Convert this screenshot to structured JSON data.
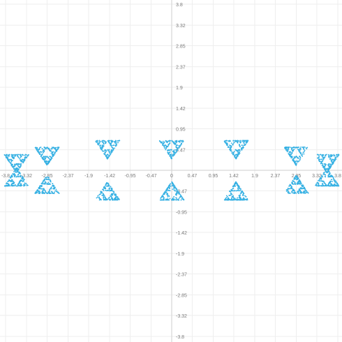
{
  "chart_data": {
    "type": "scatter",
    "title": "",
    "xlabel": "",
    "ylabel": "",
    "xlim": [
      -3.8,
      3.8
    ],
    "ylim": [
      -3.8,
      3.8
    ],
    "grid": true,
    "point_color": "#35b0e3",
    "x_ticks": [
      -3.8,
      -3.32,
      -2.85,
      -2.37,
      -1.9,
      -1.42,
      -0.95,
      -0.47,
      0,
      0.47,
      0.95,
      1.42,
      1.9,
      2.37,
      2.85,
      3.32,
      3.8
    ],
    "x_tick_labels": [
      "-3.8",
      "-3.32",
      "-2.85",
      "-2.37",
      "-1.9",
      "-1.42",
      "-0.95",
      "-0.47",
      "0",
      "0.47",
      "0.95",
      "1.42",
      "1.9",
      "2.37",
      "2.85",
      "3.32",
      "3.8"
    ],
    "y_ticks": [
      3.8,
      3.32,
      2.85,
      2.37,
      1.9,
      1.42,
      0.95,
      0.47,
      -0.47,
      -0.95,
      -1.42,
      -1.9,
      -2.37,
      -2.85,
      -3.32,
      -3.8
    ],
    "y_tick_labels": [
      "3.8",
      "3.32",
      "2.85",
      "2.37",
      "1.9",
      "1.42",
      "0.95",
      "0.47",
      "-0.47",
      "-0.95",
      "-1.42",
      "-1.9",
      "-2.37",
      "-2.85",
      "-3.32",
      "-3.8"
    ],
    "series": [
      {
        "cluster_centers": [
          [
            0,
            0.47
          ],
          [
            0,
            -0.47
          ],
          [
            1.47,
            0.47
          ],
          [
            1.47,
            -0.47
          ],
          [
            -1.47,
            0.47
          ],
          [
            -1.47,
            -0.47
          ],
          [
            2.85,
            0.32
          ],
          [
            2.85,
            -0.32
          ],
          [
            -2.85,
            0.32
          ],
          [
            -2.85,
            -0.32
          ],
          [
            3.55,
            0.15
          ],
          [
            3.55,
            -0.15
          ],
          [
            -3.55,
            0.15
          ],
          [
            -3.55,
            -0.15
          ]
        ],
        "cluster_radius": 0.28
      }
    ]
  }
}
